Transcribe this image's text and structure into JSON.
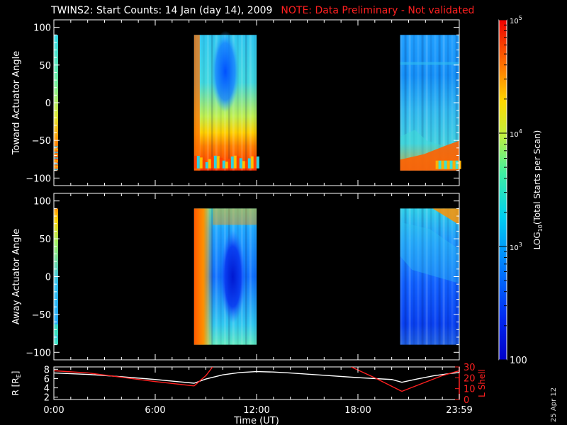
{
  "title": "TWINS2: Start Counts: 14 Jan (day  14), 2009",
  "note": "NOTE: Data Preliminary - Not validated",
  "datestamp": "25 Apr 12",
  "colors": {
    "background": "#000000",
    "axes": "#ffffff",
    "note": "#ff2020",
    "lshell": "#ff2020",
    "r": "#ffffff"
  },
  "chart_data": [
    {
      "type": "heatmap",
      "ylabel": "Toward Actuator Angle",
      "ylim": [
        -110,
        110
      ],
      "yticks": [
        100,
        50,
        0,
        -50,
        -100
      ],
      "xlim": [
        0,
        24
      ],
      "data_blocks": [
        {
          "t_start": 0.0,
          "t_end": 0.25,
          "angle_range": [
            -90,
            90
          ],
          "pattern": "toward_early"
        },
        {
          "t_start": 8.3,
          "t_end": 12.0,
          "angle_range": [
            -90,
            90
          ],
          "pattern": "toward_mid"
        },
        {
          "t_start": 20.5,
          "t_end": 24.0,
          "angle_range": [
            -90,
            90
          ],
          "pattern": "toward_late"
        }
      ]
    },
    {
      "type": "heatmap",
      "ylabel": "Away Actuator Angle",
      "ylim": [
        -110,
        110
      ],
      "yticks": [
        100,
        50,
        0,
        -50,
        -100
      ],
      "xlim": [
        0,
        24
      ],
      "data_blocks": [
        {
          "t_start": 0.0,
          "t_end": 0.25,
          "angle_range": [
            -90,
            90
          ],
          "pattern": "away_early"
        },
        {
          "t_start": 8.3,
          "t_end": 12.0,
          "angle_range": [
            -90,
            90
          ],
          "pattern": "away_mid"
        },
        {
          "t_start": 20.5,
          "t_end": 24.0,
          "angle_range": [
            -90,
            90
          ],
          "pattern": "away_late"
        }
      ]
    },
    {
      "type": "line",
      "ylabel": "R [R",
      "ylabel_sub": "E",
      "ylabel_end": "]",
      "ylim": [
        1.5,
        8.5
      ],
      "yticks": [
        2,
        4,
        6,
        8
      ],
      "y2label": "L Shell",
      "y2lim": [
        0,
        30
      ],
      "y2ticks": [
        0,
        10,
        20,
        30
      ],
      "xlabel": "Time (UT)",
      "xlim": [
        0,
        24
      ],
      "xtick_labels": [
        "0:00",
        "6:00",
        "12:00",
        "18:00",
        "23:59"
      ],
      "xtick_values": [
        0,
        6,
        12,
        18,
        24
      ],
      "series": [
        {
          "axis": "left",
          "color": "#ffffff",
          "x": [
            0,
            2,
            4,
            6,
            8.3,
            9,
            10,
            11,
            12,
            13,
            14,
            16,
            18,
            20,
            20.6,
            21.5,
            22.5,
            23.5,
            24
          ],
          "y": [
            7.2,
            6.9,
            6.4,
            5.8,
            5.0,
            5.9,
            6.8,
            7.3,
            7.5,
            7.4,
            7.2,
            6.7,
            6.2,
            5.8,
            5.2,
            5.9,
            6.6,
            7.1,
            7.3
          ]
        },
        {
          "axis": "right",
          "color": "#ff2020",
          "segments": [
            {
              "x": [
                0,
                2,
                4,
                6,
                8.3
              ],
              "y": [
                26.5,
                24.5,
                20.5,
                16.5,
                12.5
              ]
            },
            {
              "x": [
                8.3,
                9.0,
                9.4
              ],
              "y": [
                12.5,
                22.0,
                30.0
              ]
            },
            {
              "x": [
                17.6,
                19.0,
                20.6
              ],
              "y": [
                30.0,
                20.0,
                7.5
              ]
            },
            {
              "x": [
                20.6,
                22.0,
                23.0,
                24.0
              ],
              "y": [
                7.5,
                16.0,
                22.0,
                26.5
              ]
            }
          ]
        }
      ]
    }
  ],
  "colorbar": {
    "label": "LOG",
    "label_sub": "10",
    "label_end": "(Total Starts per Scan)",
    "scale": "log",
    "range": [
      100,
      100000
    ],
    "ticks": [
      {
        "value": 100,
        "label": "100"
      },
      {
        "value": 1000,
        "label": "10",
        "sup": "3"
      },
      {
        "value": 10000,
        "label": "10",
        "sup": "4"
      },
      {
        "value": 100000,
        "label": "10",
        "sup": "5"
      }
    ]
  }
}
